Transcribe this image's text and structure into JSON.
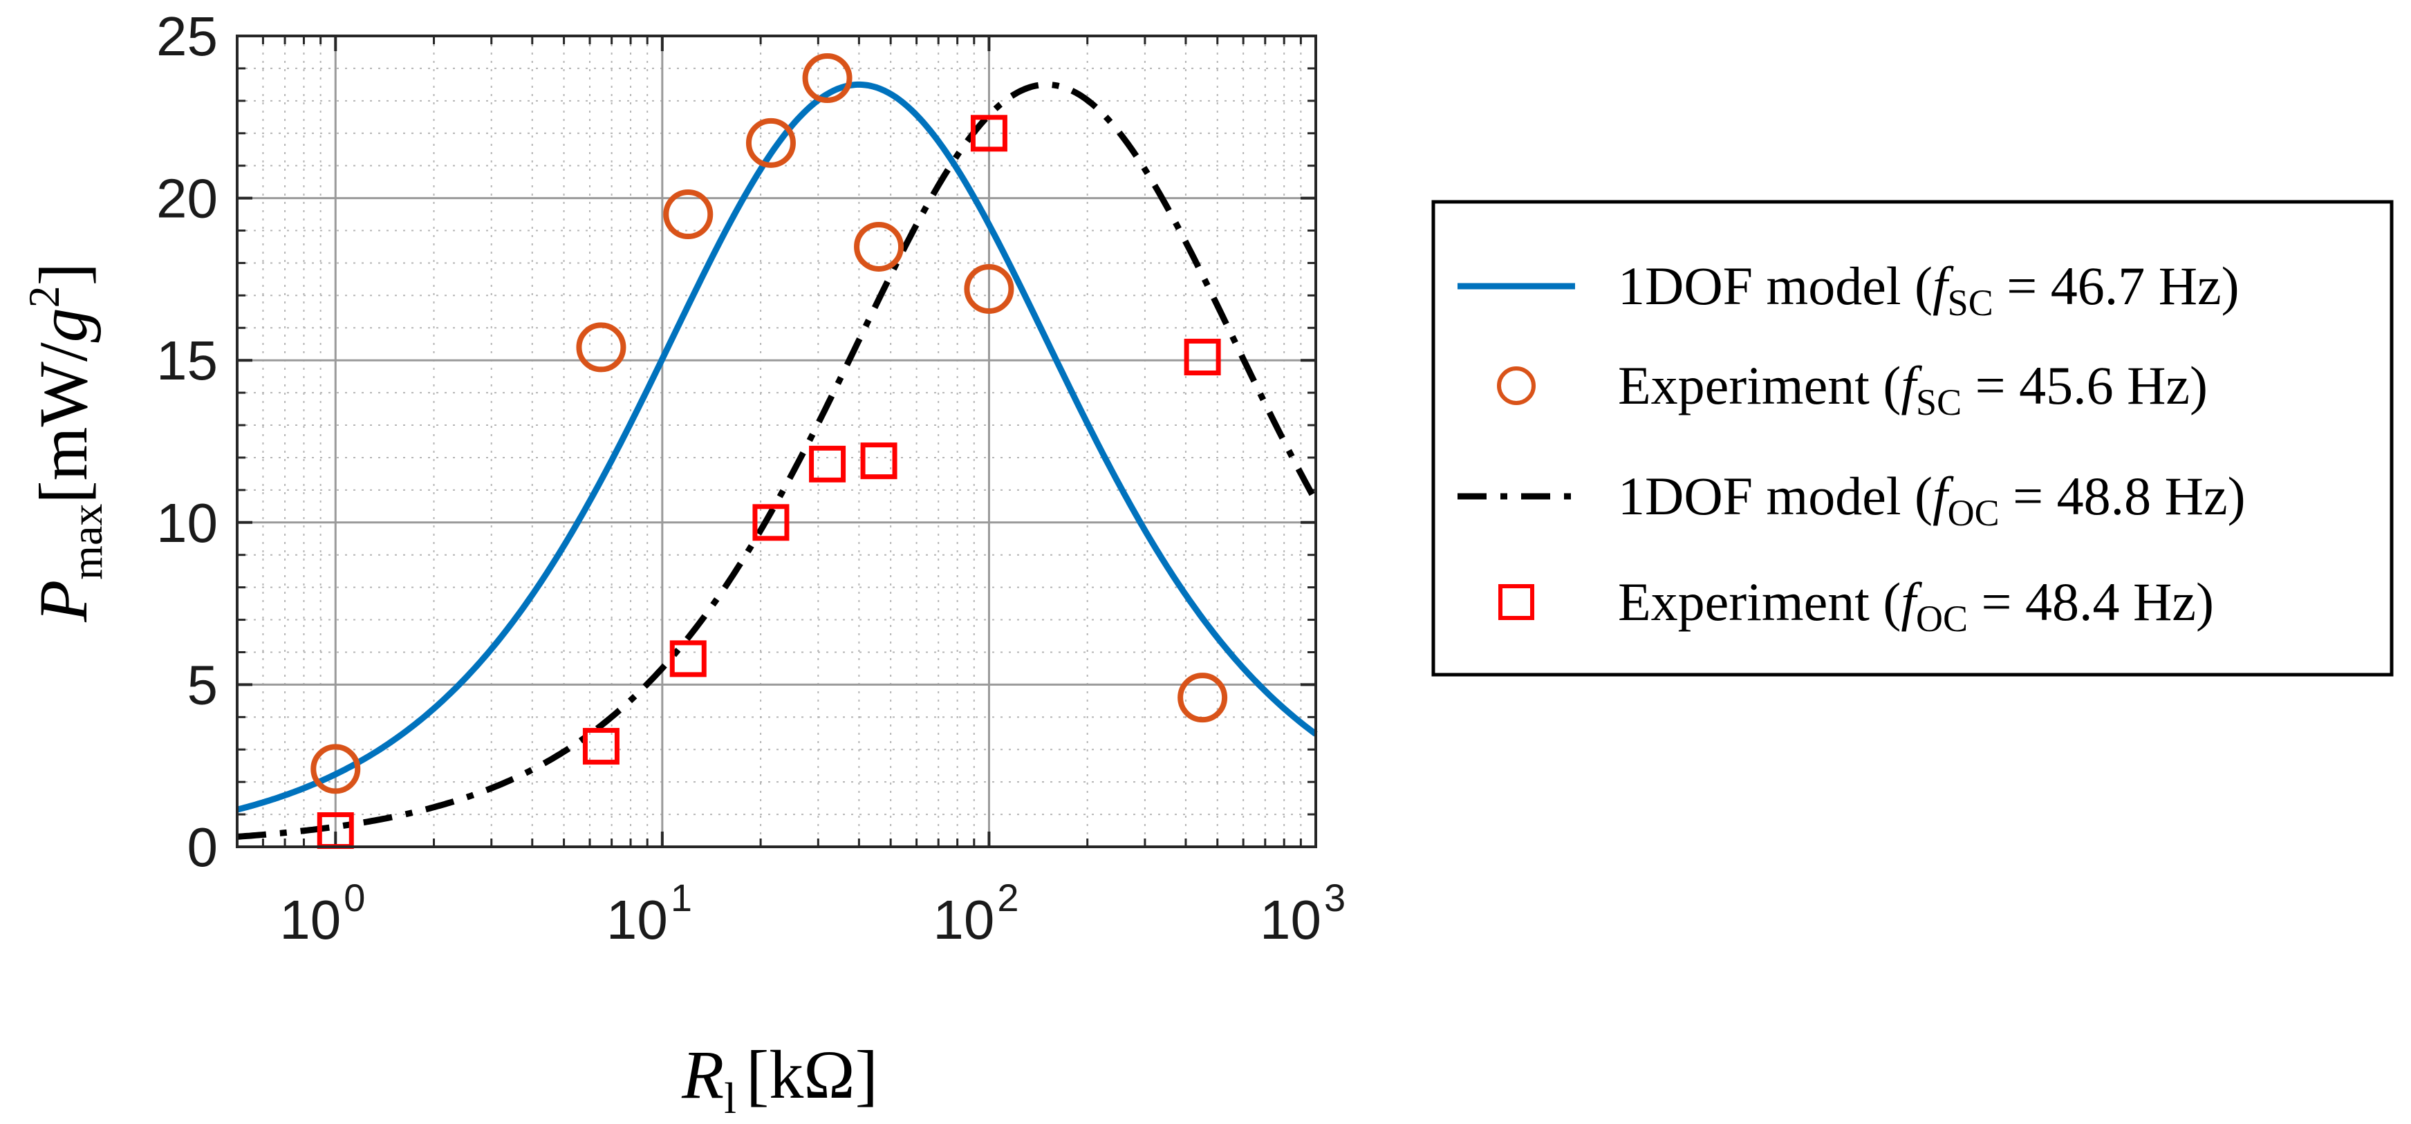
{
  "chart_data": {
    "type": "line",
    "xscale": "log",
    "xlim": [
      0.5,
      1000
    ],
    "ylim": [
      0,
      25
    ],
    "grid": true,
    "legend_position": "right outside",
    "x_ticks": [
      {
        "value": 1,
        "base": "10",
        "exp": "0"
      },
      {
        "value": 10,
        "base": "10",
        "exp": "1"
      },
      {
        "value": 100,
        "base": "10",
        "exp": "2"
      },
      {
        "value": 1000,
        "base": "10",
        "exp": "3"
      }
    ],
    "y_ticks": [
      0,
      5,
      10,
      15,
      20,
      25
    ],
    "xlabel": {
      "symbol": "R",
      "sub": "l",
      "unit": "[kΩ]"
    },
    "ylabel": {
      "symbol": "P",
      "sub": "max",
      "unit_pre": "[mW/",
      "unit_g": "g",
      "unit_sup": "2",
      "unit_post": "]"
    },
    "series": [
      {
        "name": "1DOF model (fSC = 46.7 Hz)",
        "legend": {
          "pre": "1DOF model (",
          "f": "f",
          "sub": "SC",
          "post": " = 46.7 Hz)"
        },
        "kind": "line",
        "style": "solid",
        "color": "#0072BD",
        "model": {
          "peak": 23.5,
          "r_opt": 40
        }
      },
      {
        "name": "Experiment (fSC = 45.6 Hz)",
        "legend": {
          "pre": "Experiment (",
          "f": "f",
          "sub": "SC",
          "post": " = 45.6 Hz)"
        },
        "kind": "marker",
        "marker": "circle",
        "color": "#D95319",
        "x": [
          1,
          6.5,
          12,
          21.5,
          32,
          46,
          100,
          450
        ],
        "y": [
          2.4,
          15.4,
          19.5,
          21.7,
          23.7,
          18.5,
          17.2,
          4.6
        ]
      },
      {
        "name": "1DOF model (fOC = 48.8 Hz)",
        "legend": {
          "pre": "1DOF model (",
          "f": "f",
          "sub": "OC",
          "post": " = 48.8 Hz)"
        },
        "kind": "line",
        "style": "dashdot",
        "color": "#000000",
        "model": {
          "peak": 23.5,
          "r_opt": 150
        }
      },
      {
        "name": "Experiment (fOC = 48.4 Hz)",
        "legend": {
          "pre": "Experiment (",
          "f": "f",
          "sub": "OC",
          "post": " = 48.4 Hz)"
        },
        "kind": "marker",
        "marker": "square",
        "color": "#FF0000",
        "x": [
          1,
          6.5,
          12,
          21.5,
          32,
          46,
          100,
          450
        ],
        "y": [
          0.5,
          3.1,
          5.8,
          10.0,
          11.8,
          11.9,
          22.0,
          15.1
        ]
      }
    ]
  }
}
